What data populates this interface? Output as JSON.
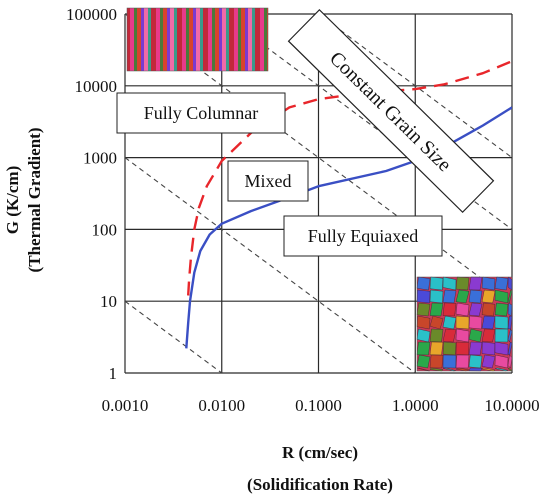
{
  "chart_data": {
    "type": "line",
    "x_scale": "log",
    "y_scale": "log",
    "xlim": [
      0.001,
      10
    ],
    "ylim": [
      1,
      100000
    ],
    "grid": true,
    "xlabel_lines": [
      "R (cm/sec)",
      "(Solidification Rate)"
    ],
    "ylabel_lines": [
      "G (K/cm)",
      "(Thermal Gradient)"
    ],
    "x_ticks": [
      {
        "value": 0.001,
        "label": "0.0010"
      },
      {
        "value": 0.01,
        "label": "0.0100"
      },
      {
        "value": 0.1,
        "label": "0.1000"
      },
      {
        "value": 1,
        "label": "1.0000"
      },
      {
        "value": 10,
        "label": "10.0000"
      }
    ],
    "y_ticks": [
      {
        "value": 1,
        "label": "1"
      },
      {
        "value": 10,
        "label": "10"
      },
      {
        "value": 100,
        "label": "100"
      },
      {
        "value": 1000,
        "label": "1000"
      },
      {
        "value": 10000,
        "label": "10000"
      },
      {
        "value": 100000,
        "label": "100000"
      }
    ],
    "series": [
      {
        "style": "dashed",
        "color": "#e8262b",
        "points": [
          [
            0.0045,
            12
          ],
          [
            0.0046,
            20
          ],
          [
            0.0048,
            40
          ],
          [
            0.0052,
            100
          ],
          [
            0.0058,
            200
          ],
          [
            0.007,
            400
          ],
          [
            0.01,
            900
          ],
          [
            0.02,
            2200
          ],
          [
            0.05,
            5000
          ],
          [
            0.1,
            6500
          ],
          [
            0.3,
            8000
          ],
          [
            1,
            9000
          ],
          [
            2,
            10500
          ],
          [
            5,
            15000
          ],
          [
            10,
            22000
          ]
        ]
      },
      {
        "style": "solid",
        "color": "#3a4fc4",
        "points": [
          [
            0.0043,
            2.2
          ],
          [
            0.0045,
            5
          ],
          [
            0.0047,
            10
          ],
          [
            0.0052,
            25
          ],
          [
            0.006,
            50
          ],
          [
            0.0075,
            85
          ],
          [
            0.01,
            120
          ],
          [
            0.02,
            180
          ],
          [
            0.05,
            280
          ],
          [
            0.1,
            400
          ],
          [
            0.5,
            650
          ],
          [
            1,
            900
          ],
          [
            2,
            1400
          ],
          [
            5,
            2800
          ],
          [
            10,
            5000
          ]
        ]
      }
    ],
    "iso_lines": [
      {
        "x1": 0.001,
        "y1": 10,
        "x2": 0.01,
        "y2": 1
      },
      {
        "x1": 0.001,
        "y1": 1000,
        "x2": 1,
        "y2": 1
      },
      {
        "x1": 0.001,
        "y1": 100000,
        "x2": 10,
        "y2": 10
      },
      {
        "x1": 0.01,
        "y1": 100000,
        "x2": 10,
        "y2": 100
      },
      {
        "x1": 0.1,
        "y1": 100000,
        "x2": 10,
        "y2": 1000
      }
    ],
    "regions": {
      "columnar": "Fully Columnar",
      "mixed": "Mixed",
      "equiaxed": "Fully Equiaxed",
      "constant_grain": "Constant Grain Size"
    },
    "colors": {
      "grid": "#2a2a2a",
      "iso_line": "#444444",
      "dashed_series": "#e8262b",
      "solid_series": "#3a4fc4"
    }
  }
}
